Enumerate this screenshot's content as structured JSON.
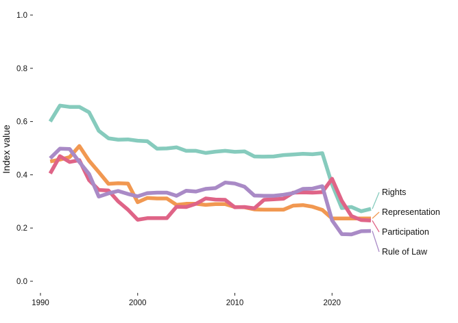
{
  "chart_data": {
    "type": "line",
    "title": "",
    "xlabel": "",
    "ylabel": "Index value",
    "xlim": [
      1990,
      2024
    ],
    "ylim": [
      0,
      1
    ],
    "x_ticks": [
      1990,
      2000,
      2010,
      2020
    ],
    "x_tick_labels": [
      "1990",
      "2000",
      "2010",
      "2020"
    ],
    "y_ticks": [
      0,
      0.2,
      0.4,
      0.6,
      0.8,
      1.0
    ],
    "y_tick_labels": [
      "0.0",
      "0.2",
      "0.4",
      "0.6",
      "0.8",
      "1.0"
    ],
    "grid": false,
    "legend": "direct labels at line ends (right)",
    "x": [
      1991,
      1992,
      1993,
      1994,
      1995,
      1996,
      1997,
      1998,
      1999,
      2000,
      2001,
      2002,
      2003,
      2004,
      2005,
      2006,
      2007,
      2008,
      2009,
      2010,
      2011,
      2012,
      2013,
      2014,
      2015,
      2016,
      2017,
      2018,
      2019,
      2020,
      2021,
      2022,
      2023,
      2024
    ],
    "series": [
      {
        "name": "Rights",
        "color": "#86cbbd",
        "values": [
          0.6,
          0.66,
          0.655,
          0.655,
          0.635,
          0.565,
          0.537,
          0.532,
          0.533,
          0.528,
          0.526,
          0.498,
          0.499,
          0.503,
          0.49,
          0.49,
          0.482,
          0.487,
          0.49,
          0.486,
          0.488,
          0.469,
          0.468,
          0.469,
          0.474,
          0.476,
          0.479,
          0.477,
          0.481,
          0.364,
          0.275,
          0.279,
          0.263,
          0.272
        ]
      },
      {
        "name": "Representation",
        "color": "#f19851",
        "values": [
          0.45,
          0.457,
          0.466,
          0.508,
          0.453,
          0.41,
          0.366,
          0.368,
          0.367,
          0.297,
          0.313,
          0.311,
          0.311,
          0.287,
          0.291,
          0.291,
          0.287,
          0.29,
          0.29,
          0.279,
          0.278,
          0.27,
          0.269,
          0.269,
          0.269,
          0.284,
          0.286,
          0.28,
          0.268,
          0.236,
          0.236,
          0.236,
          0.236,
          0.236
        ]
      },
      {
        "name": "Participation",
        "color": "#df6487",
        "values": [
          0.405,
          0.47,
          0.448,
          0.455,
          0.38,
          0.343,
          0.341,
          0.3,
          0.269,
          0.231,
          0.237,
          0.237,
          0.237,
          0.28,
          0.279,
          0.291,
          0.311,
          0.307,
          0.306,
          0.278,
          0.279,
          0.274,
          0.306,
          0.308,
          0.31,
          0.333,
          0.334,
          0.333,
          0.335,
          0.385,
          0.302,
          0.245,
          0.23,
          0.228
        ]
      },
      {
        "name": "Rule of Law",
        "color": "#a98ac6",
        "values": [
          0.462,
          0.498,
          0.497,
          0.448,
          0.403,
          0.318,
          0.33,
          0.339,
          0.328,
          0.319,
          0.331,
          0.333,
          0.333,
          0.321,
          0.34,
          0.337,
          0.347,
          0.35,
          0.371,
          0.367,
          0.355,
          0.322,
          0.321,
          0.321,
          0.325,
          0.331,
          0.347,
          0.348,
          0.357,
          0.229,
          0.177,
          0.176,
          0.188,
          0.189
        ]
      }
    ]
  }
}
